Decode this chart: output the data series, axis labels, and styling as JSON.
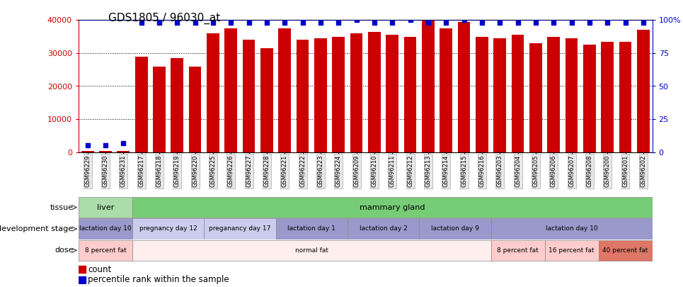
{
  "title": "GDS1805 / 96030_at",
  "samples": [
    "GSM96229",
    "GSM96230",
    "GSM96231",
    "GSM96217",
    "GSM96218",
    "GSM96219",
    "GSM96220",
    "GSM96225",
    "GSM96226",
    "GSM96227",
    "GSM96228",
    "GSM96221",
    "GSM96222",
    "GSM96223",
    "GSM96224",
    "GSM96209",
    "GSM96210",
    "GSM96211",
    "GSM96212",
    "GSM96213",
    "GSM96214",
    "GSM96215",
    "GSM96216",
    "GSM96203",
    "GSM96204",
    "GSM96205",
    "GSM96206",
    "GSM96207",
    "GSM96208",
    "GSM96200",
    "GSM96201",
    "GSM96202"
  ],
  "counts": [
    300,
    350,
    400,
    29000,
    26000,
    28500,
    26000,
    36000,
    37500,
    34000,
    31500,
    37500,
    34000,
    34500,
    35000,
    36000,
    36500,
    35500,
    35000,
    40000,
    37500,
    39500,
    35000,
    34500,
    35500,
    33000,
    35000,
    34500,
    32500,
    33500,
    33500,
    37000
  ],
  "percentiles_pct": [
    5,
    5,
    7,
    98,
    98,
    98,
    98,
    98,
    98,
    98,
    98,
    98,
    98,
    98,
    98,
    100,
    98,
    98,
    100,
    98,
    98,
    100,
    98,
    98,
    98,
    98,
    98,
    98,
    98,
    98,
    98,
    98
  ],
  "bar_color": "#cc0000",
  "percentile_color": "#0000cc",
  "ylim_left": [
    0,
    40000
  ],
  "ylim_right": [
    0,
    100
  ],
  "yticks_left": [
    0,
    10000,
    20000,
    30000,
    40000
  ],
  "yticks_right": [
    0,
    25,
    50,
    75,
    100
  ],
  "ytick_labels_right": [
    "0",
    "25",
    "50",
    "75",
    "100%"
  ],
  "tissue_segments": [
    {
      "label": "liver",
      "start": 0,
      "end": 3,
      "color": "#aaddaa"
    },
    {
      "label": "mammary gland",
      "start": 3,
      "end": 32,
      "color": "#77cc77"
    }
  ],
  "dev_stage_segments": [
    {
      "label": "lactation day 10",
      "start": 0,
      "end": 3,
      "color": "#9999cc"
    },
    {
      "label": "pregnancy day 12",
      "start": 3,
      "end": 7,
      "color": "#ccccee"
    },
    {
      "label": "preganancy day 17",
      "start": 7,
      "end": 11,
      "color": "#ccccee"
    },
    {
      "label": "lactation day 1",
      "start": 11,
      "end": 15,
      "color": "#9999cc"
    },
    {
      "label": "lactation day 2",
      "start": 15,
      "end": 19,
      "color": "#9999cc"
    },
    {
      "label": "lactation day 9",
      "start": 19,
      "end": 23,
      "color": "#9999cc"
    },
    {
      "label": "lactation day 10",
      "start": 23,
      "end": 32,
      "color": "#9999cc"
    }
  ],
  "dose_segments": [
    {
      "label": "8 percent fat",
      "start": 0,
      "end": 3,
      "color": "#ffcccc"
    },
    {
      "label": "normal fat",
      "start": 3,
      "end": 23,
      "color": "#ffeeee"
    },
    {
      "label": "8 percent fat",
      "start": 23,
      "end": 26,
      "color": "#ffcccc"
    },
    {
      "label": "16 percent fat",
      "start": 26,
      "end": 29,
      "color": "#ffcccc"
    },
    {
      "label": "40 percent fat",
      "start": 29,
      "end": 32,
      "color": "#dd7766"
    }
  ],
  "legend_count_color": "#cc0000",
  "legend_percentile_color": "#0000cc",
  "bg_color": "#ffffff",
  "axis_label_color_left": "#cc0000",
  "axis_label_color_right": "#0000cc"
}
